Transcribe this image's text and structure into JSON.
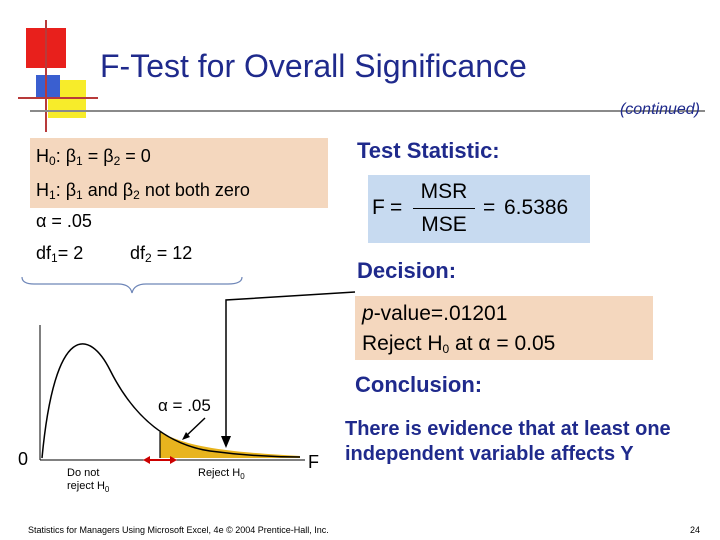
{
  "slide": {
    "title": "F-Test for Overall Significance",
    "continued": "(continued)",
    "page_number": "24",
    "footer": "Statistics for Managers Using Microsoft Excel, 4e © 2004 Prentice-Hall, Inc."
  },
  "hypotheses": {
    "h0_lead": "H",
    "h0_sub": "0",
    "h0_rest": ": β",
    "h0_b1_sub": "1",
    "h0_mid": " = β",
    "h0_b2_sub": "2",
    "h0_end": " = 0",
    "h1_lead": "H",
    "h1_sub": "1",
    "h1_rest": ": β",
    "h1_b1_sub": "1",
    "h1_mid": " and β",
    "h1_b2_sub": "2",
    "h1_end": " not both zero",
    "alpha": "α = .05",
    "df1_lead": "df",
    "df1_sub": "1",
    "df1_rest": "= 2",
    "df2_lead": "df",
    "df2_sub": "2",
    "df2_rest": " = 12"
  },
  "test_statistic": {
    "label": "Test Statistic:",
    "f_symbol": "F",
    "equals1": "=",
    "numerator": "MSR",
    "denominator": "MSE",
    "equals2": "=",
    "value": "6.5386"
  },
  "decision": {
    "label": "Decision:",
    "pvalue_italic": "p",
    "pvalue_rest": "-value=.01201",
    "reject_lead": "Reject H",
    "reject_sub": "0",
    "reject_rest": " at  α = 0.05"
  },
  "conclusion": {
    "label": "Conclusion:",
    "text": "There is evidence that at least one independent variable affects Y"
  },
  "distribution": {
    "origin_label": "0",
    "axis_label": "F",
    "alpha_label": "α = .05",
    "do_not_reject_line1": "Do not",
    "do_not_reject_line2_lead": "reject H",
    "do_not_reject_sub": "0",
    "reject_lead": "Reject H",
    "reject_sub": "0",
    "colors": {
      "rejection_region": "#e8b41e",
      "title": "#1f2a8c",
      "marker": "#cc0000"
    }
  }
}
